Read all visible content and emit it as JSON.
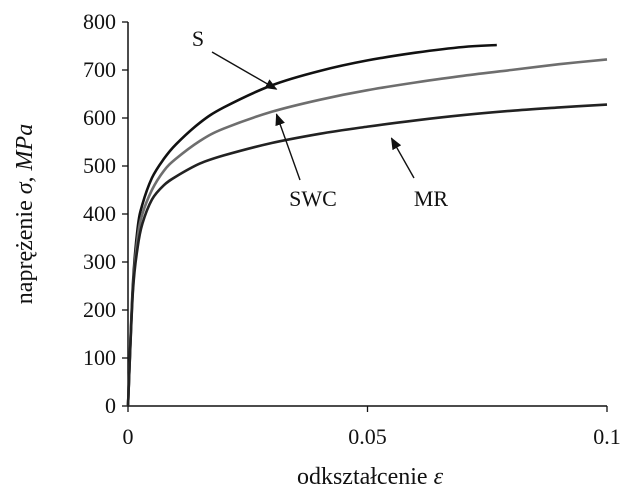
{
  "chart_data": {
    "type": "line",
    "title": "",
    "xlabel": "odkształcenie",
    "xlabel_symbol": "ε",
    "ylabel": "naprężenie",
    "ylabel_symbol": "σ",
    "ylabel_unit": "MPa",
    "xlim": [
      0,
      0.1
    ],
    "ylim": [
      0,
      800
    ],
    "x_ticks": [
      0,
      0.05,
      0.1
    ],
    "x_tick_labels": [
      "0",
      "0.05",
      "0.1"
    ],
    "y_ticks": [
      0,
      100,
      200,
      300,
      400,
      500,
      600,
      700,
      800
    ],
    "y_tick_labels": [
      "0",
      "100",
      "200",
      "300",
      "400",
      "500",
      "600",
      "700",
      "800"
    ],
    "grid": false,
    "series": [
      {
        "name": "S",
        "color": "#111111",
        "x": [
          0,
          0.001,
          0.002,
          0.003,
          0.005,
          0.0075,
          0.01,
          0.015,
          0.02,
          0.03,
          0.04,
          0.05,
          0.06,
          0.07,
          0.077
        ],
        "y": [
          0,
          250,
          370,
          420,
          475,
          515,
          545,
          590,
          622,
          668,
          698,
          720,
          736,
          748,
          752
        ]
      },
      {
        "name": "SWC",
        "color": "#6e6e6e",
        "x": [
          0,
          0.001,
          0.002,
          0.003,
          0.005,
          0.0075,
          0.01,
          0.015,
          0.02,
          0.03,
          0.04,
          0.05,
          0.06,
          0.07,
          0.08,
          0.09,
          0.1
        ],
        "y": [
          0,
          240,
          350,
          400,
          450,
          490,
          515,
          552,
          578,
          613,
          638,
          658,
          674,
          688,
          700,
          712,
          722
        ]
      },
      {
        "name": "MR",
        "color": "#222222",
        "x": [
          0,
          0.001,
          0.002,
          0.003,
          0.005,
          0.0075,
          0.01,
          0.015,
          0.02,
          0.03,
          0.04,
          0.05,
          0.06,
          0.07,
          0.08,
          0.09,
          0.1
        ],
        "y": [
          0,
          235,
          330,
          380,
          430,
          460,
          478,
          505,
          522,
          548,
          567,
          582,
          595,
          606,
          615,
          622,
          628
        ]
      }
    ],
    "annotations": [
      {
        "text": "S",
        "series": "S",
        "x_point": 0.031,
        "y_point": 660
      },
      {
        "text": "SWC",
        "series": "SWC",
        "x_point": 0.031,
        "y_point": 608
      },
      {
        "text": "MR",
        "series": "MR",
        "x_point": 0.055,
        "y_point": 558
      }
    ]
  }
}
